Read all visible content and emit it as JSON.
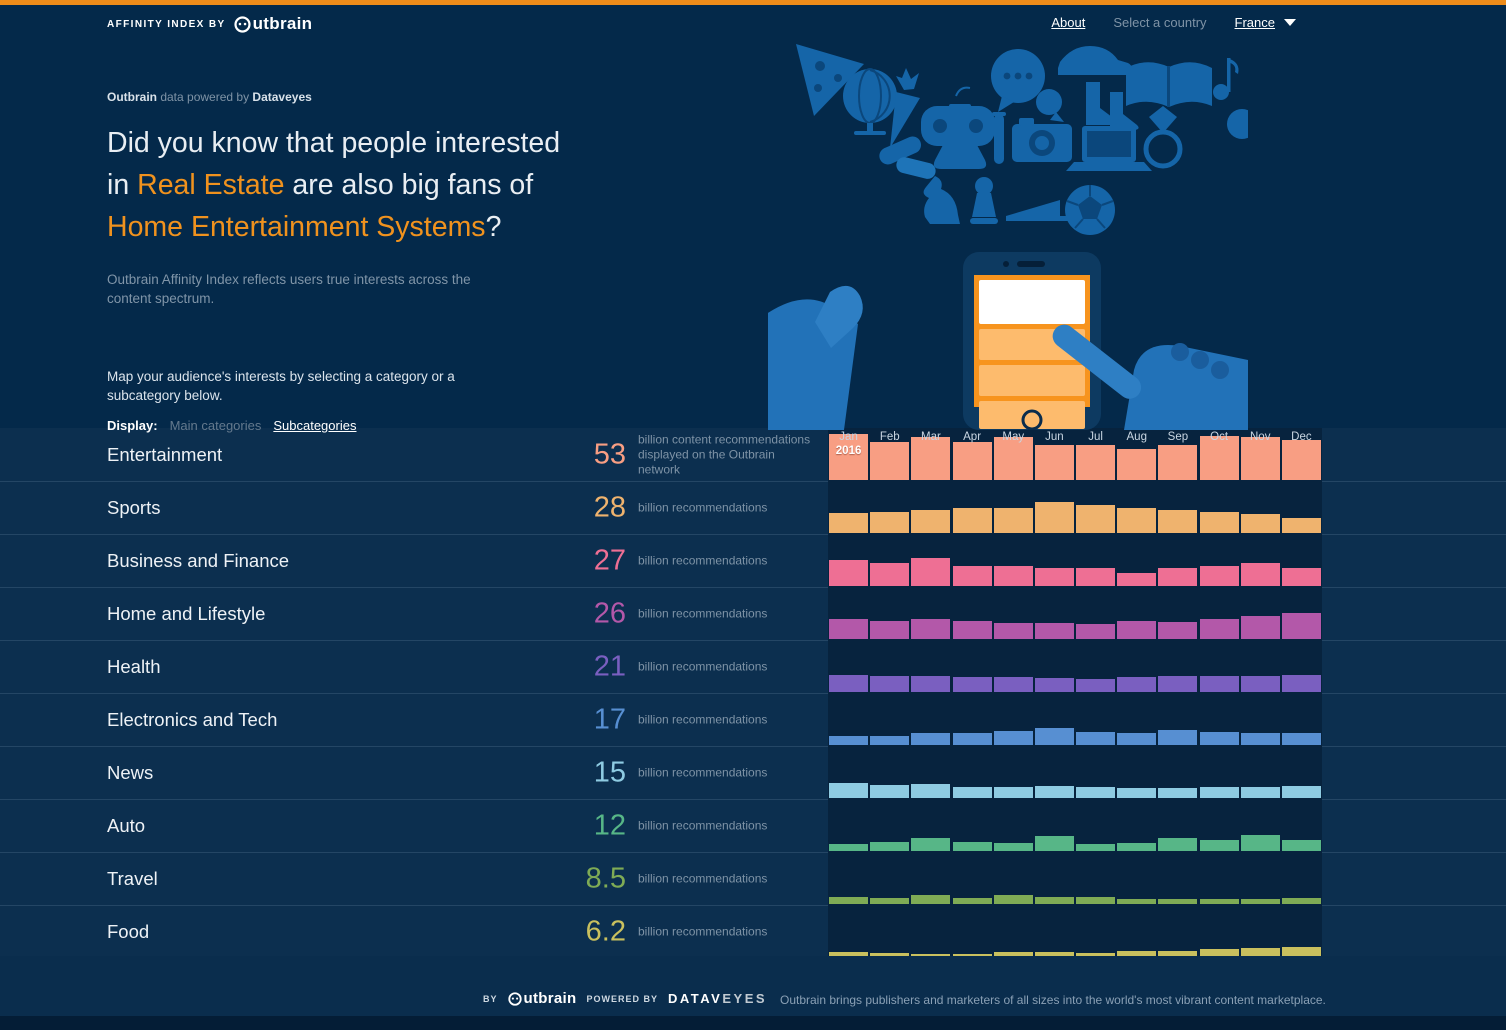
{
  "colors": {
    "accent": "#f0921e",
    "page_bg": "#04294a",
    "table_bg": "#0c2f4f",
    "chart_bg": "#07233e",
    "top_bar": "#ee8c1a"
  },
  "header": {
    "brand_prefix": "AFFINITY INDEX BY",
    "brand_name": "utbrain",
    "nav": {
      "about": "About",
      "select_country": "Select a country",
      "country": "France"
    }
  },
  "hero": {
    "credit_bold_1": "Outbrain",
    "credit_text": " data powered by ",
    "credit_bold_2": "Dataveyes",
    "headline_parts": [
      {
        "text": "Did you know that people interested in ",
        "accent": false
      },
      {
        "text": "Real Estate",
        "accent": true
      },
      {
        "text": " are also big fans of ",
        "accent": false
      },
      {
        "text": "Home Entertainment Systems",
        "accent": true
      },
      {
        "text": "?",
        "accent": false
      }
    ],
    "subtitle": "Outbrain Affinity Index reflects users true interests across the content spectrum.",
    "instruction": "Map your audience's interests by selecting a category or a subcategory below.",
    "display_label": "Display:",
    "option_main": "Main categories",
    "option_sub": "Subcategories"
  },
  "chart_data": {
    "type": "bar",
    "x_labels_months": [
      "Jan",
      "Feb",
      "Mar",
      "Apr",
      "May",
      "Jun",
      "Jul",
      "Aug",
      "Sep",
      "Oct",
      "Nov",
      "Dec"
    ],
    "year_label": "2016",
    "value_unit": "billion recommendations",
    "legend_position": "none",
    "grid": false,
    "categories": [
      {
        "name": "Entertainment",
        "value": "53",
        "unit": "billion content recommendations displayed on the Outbrain network",
        "color": "#f89e83",
        "monthly_relative": [
          1.0,
          0.83,
          0.93,
          0.83,
          0.93,
          0.76,
          0.76,
          0.67,
          0.76,
          0.96,
          0.93,
          0.87
        ]
      },
      {
        "name": "Sports",
        "value": "28",
        "unit": "billion recommendations",
        "color": "#efb36e",
        "monthly_relative": [
          0.43,
          0.46,
          0.5,
          0.54,
          0.54,
          0.67,
          0.61,
          0.54,
          0.5,
          0.46,
          0.41,
          0.33
        ]
      },
      {
        "name": "Business and Finance",
        "value": "27",
        "unit": "billion recommendations",
        "color": "#ee6f94",
        "monthly_relative": [
          0.57,
          0.5,
          0.61,
          0.43,
          0.43,
          0.39,
          0.39,
          0.28,
          0.39,
          0.43,
          0.5,
          0.39
        ]
      },
      {
        "name": "Home and Lifestyle",
        "value": "26",
        "unit": "billion recommendations",
        "color": "#b358a9",
        "monthly_relative": [
          0.43,
          0.39,
          0.43,
          0.39,
          0.35,
          0.35,
          0.33,
          0.39,
          0.37,
          0.43,
          0.5,
          0.57
        ]
      },
      {
        "name": "Health",
        "value": "21",
        "unit": "billion recommendations",
        "color": "#7a5fc0",
        "monthly_relative": [
          0.37,
          0.35,
          0.35,
          0.33,
          0.33,
          0.3,
          0.28,
          0.33,
          0.35,
          0.35,
          0.35,
          0.37
        ]
      },
      {
        "name": "Electronics and Tech",
        "value": "17",
        "unit": "billion recommendations",
        "color": "#578fd2",
        "monthly_relative": [
          0.2,
          0.2,
          0.26,
          0.26,
          0.3,
          0.37,
          0.28,
          0.26,
          0.33,
          0.28,
          0.26,
          0.26
        ]
      },
      {
        "name": "News",
        "value": "15",
        "unit": "billion recommendations",
        "color": "#8ecbe2",
        "monthly_relative": [
          0.33,
          0.28,
          0.3,
          0.24,
          0.24,
          0.26,
          0.24,
          0.22,
          0.22,
          0.24,
          0.24,
          0.26
        ]
      },
      {
        "name": "Auto",
        "value": "12",
        "unit": "billion recommendations",
        "color": "#57b687",
        "monthly_relative": [
          0.15,
          0.2,
          0.28,
          0.2,
          0.17,
          0.33,
          0.15,
          0.17,
          0.28,
          0.24,
          0.35,
          0.24
        ]
      },
      {
        "name": "Travel",
        "value": "8.5",
        "unit": "billion recommendations",
        "color": "#7fab55",
        "monthly_relative": [
          0.15,
          0.13,
          0.2,
          0.13,
          0.2,
          0.15,
          0.15,
          0.11,
          0.11,
          0.11,
          0.11,
          0.13
        ]
      },
      {
        "name": "Food",
        "value": "6.2",
        "unit": "billion recommendations",
        "color": "#c9c05e",
        "monthly_relative": [
          0.11,
          0.09,
          0.07,
          0.07,
          0.11,
          0.11,
          0.09,
          0.13,
          0.13,
          0.17,
          0.2,
          0.22
        ]
      }
    ]
  },
  "footer": {
    "by_label": "BY",
    "brand_name": "utbrain",
    "powered_label": "POWERED BY",
    "dataveyes_1": "DATAV",
    "dataveyes_2": "EYES",
    "tagline": "Outbrain brings publishers and marketers of all sizes into the world's most vibrant content marketplace."
  }
}
